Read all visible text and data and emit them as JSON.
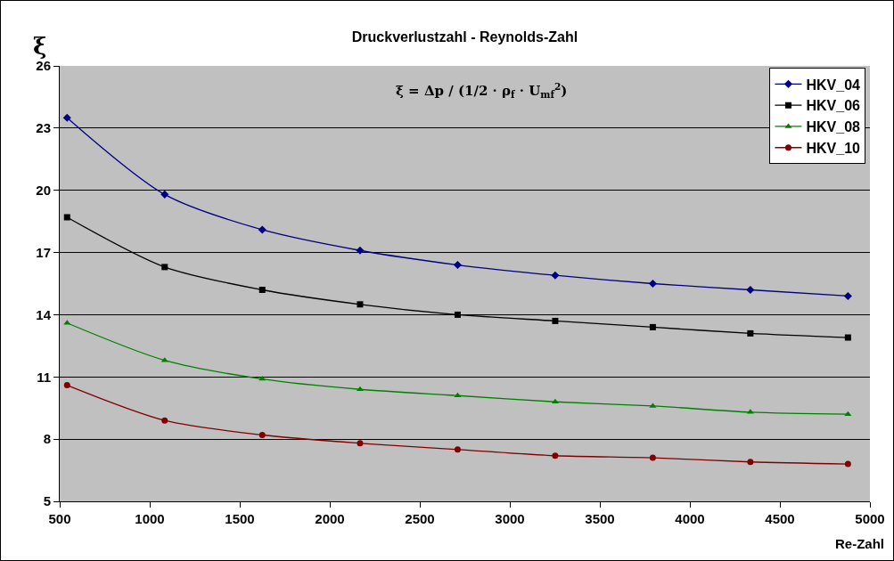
{
  "chart_data": {
    "type": "line",
    "title": "Druckverlustzahl - Reynolds-Zahl",
    "xlabel": "Re-Zahl",
    "ylabel": "ξ",
    "x": [
      541,
      1083,
      1625,
      2168,
      2710,
      3252,
      3794,
      4336,
      4878
    ],
    "series": [
      {
        "name": "HKV_04",
        "color": "#000080",
        "marker": "diamond",
        "values": [
          23.5,
          19.8,
          18.1,
          17.1,
          16.4,
          15.9,
          15.5,
          15.2,
          14.9
        ]
      },
      {
        "name": "HKV_06",
        "color": "#000000",
        "marker": "square",
        "values": [
          18.7,
          16.3,
          15.2,
          14.5,
          14.0,
          13.7,
          13.4,
          13.1,
          12.9
        ]
      },
      {
        "name": "HKV_08",
        "color": "#008000",
        "marker": "triangle",
        "values": [
          13.6,
          11.8,
          10.9,
          10.4,
          10.1,
          9.8,
          9.6,
          9.3,
          9.2
        ]
      },
      {
        "name": "HKV_10",
        "color": "#800000",
        "marker": "circle",
        "values": [
          10.6,
          8.9,
          8.2,
          7.8,
          7.5,
          7.2,
          7.1,
          6.9,
          6.8
        ]
      }
    ],
    "xlim": [
      500,
      5000
    ],
    "xticks": [
      500,
      1000,
      1500,
      2000,
      2500,
      3000,
      3500,
      4000,
      4500,
      5000
    ],
    "ylim": [
      5,
      26
    ],
    "yticks": [
      5,
      8,
      11,
      14,
      17,
      20,
      23,
      26
    ],
    "grid": "y",
    "legend": "top right",
    "line_style": "solid",
    "annotations": [
      "ξ = Δp / (1/2 · ρ$_{f}$ · U$_{mf}$$^{2}$)"
    ]
  }
}
